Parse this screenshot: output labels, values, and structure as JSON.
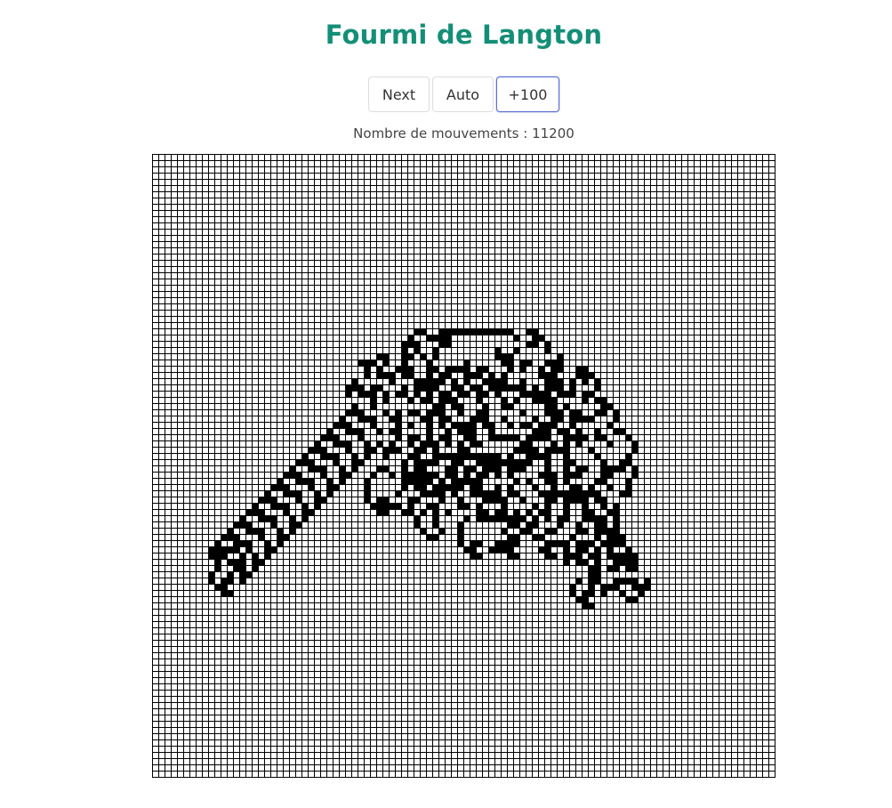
{
  "page": {
    "title": "Fourmi de Langton",
    "title_color": "#148f77",
    "moves_text": "Nombre de mouvements : 11200"
  },
  "controls": {
    "next_label": "Next",
    "auto_label": "Auto",
    "plus100_label": "+100"
  },
  "board": {
    "cell_color": "#000000",
    "grid_color": "#000000",
    "background": "#ffffff",
    "rows": 100,
    "cols": 100,
    "steps": 11200,
    "ant_start": [
      50,
      50
    ],
    "ant_direction": "up"
  }
}
